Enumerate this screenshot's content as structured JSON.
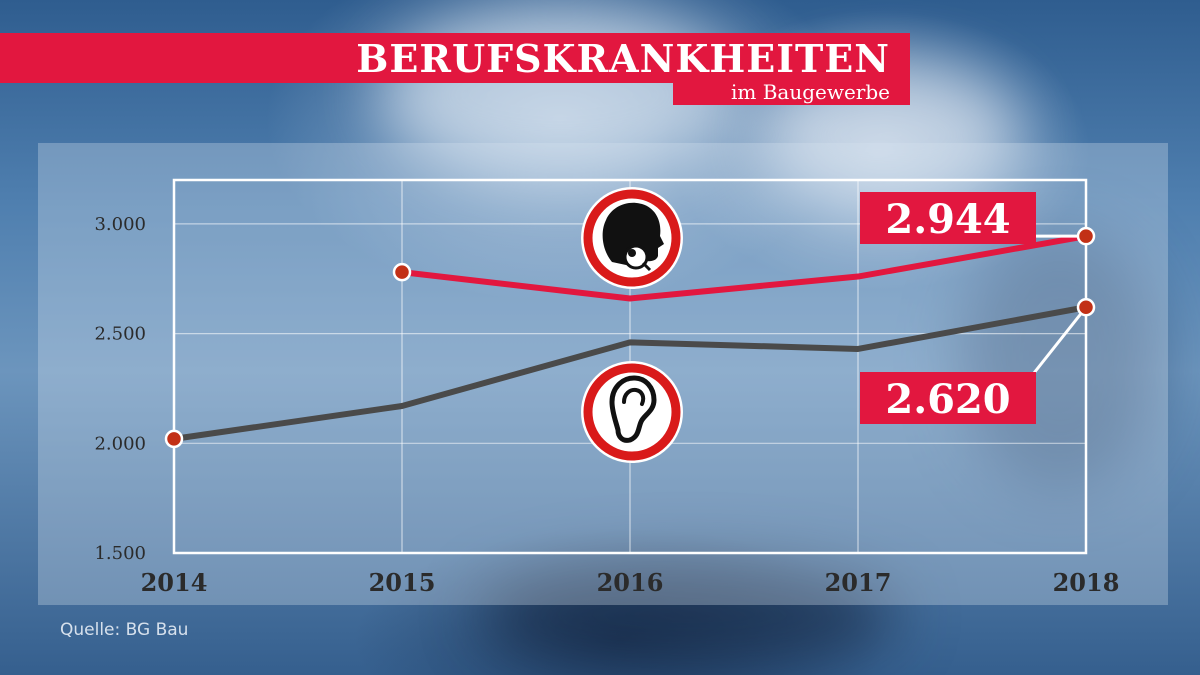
{
  "header": {
    "title": "BERUFSKRANKHEITEN",
    "subtitle": "im Baugewerbe"
  },
  "source": "Quelle: BG Bau",
  "colors": {
    "accent_red": "#e2173f",
    "line_red": "#e2173f",
    "line_dark": "#4a4a4a",
    "marker": "#c23016"
  },
  "chart_data": {
    "type": "line",
    "title": "BERUFSKRANKHEITEN",
    "subtitle": "im Baugewerbe",
    "x": [
      "2014",
      "2015",
      "2016",
      "2017",
      "2018"
    ],
    "ylim": [
      1500,
      3200
    ],
    "y_ticks": [
      {
        "value": 1500,
        "label": "1.500"
      },
      {
        "value": 2000,
        "label": "2.000"
      },
      {
        "value": 2500,
        "label": "2.500"
      },
      {
        "value": 3000,
        "label": "3.000"
      }
    ],
    "grid": true,
    "series": [
      {
        "icon": "lung-disease-icon",
        "color": "#e2173f",
        "values": [
          null,
          2780,
          2660,
          2760,
          2944
        ],
        "end_label": "2.944"
      },
      {
        "icon": "ear-hearing-loss-icon",
        "color": "#4a4a4a",
        "values": [
          2020,
          2170,
          2460,
          2430,
          2620
        ],
        "end_label": "2.620"
      }
    ]
  }
}
